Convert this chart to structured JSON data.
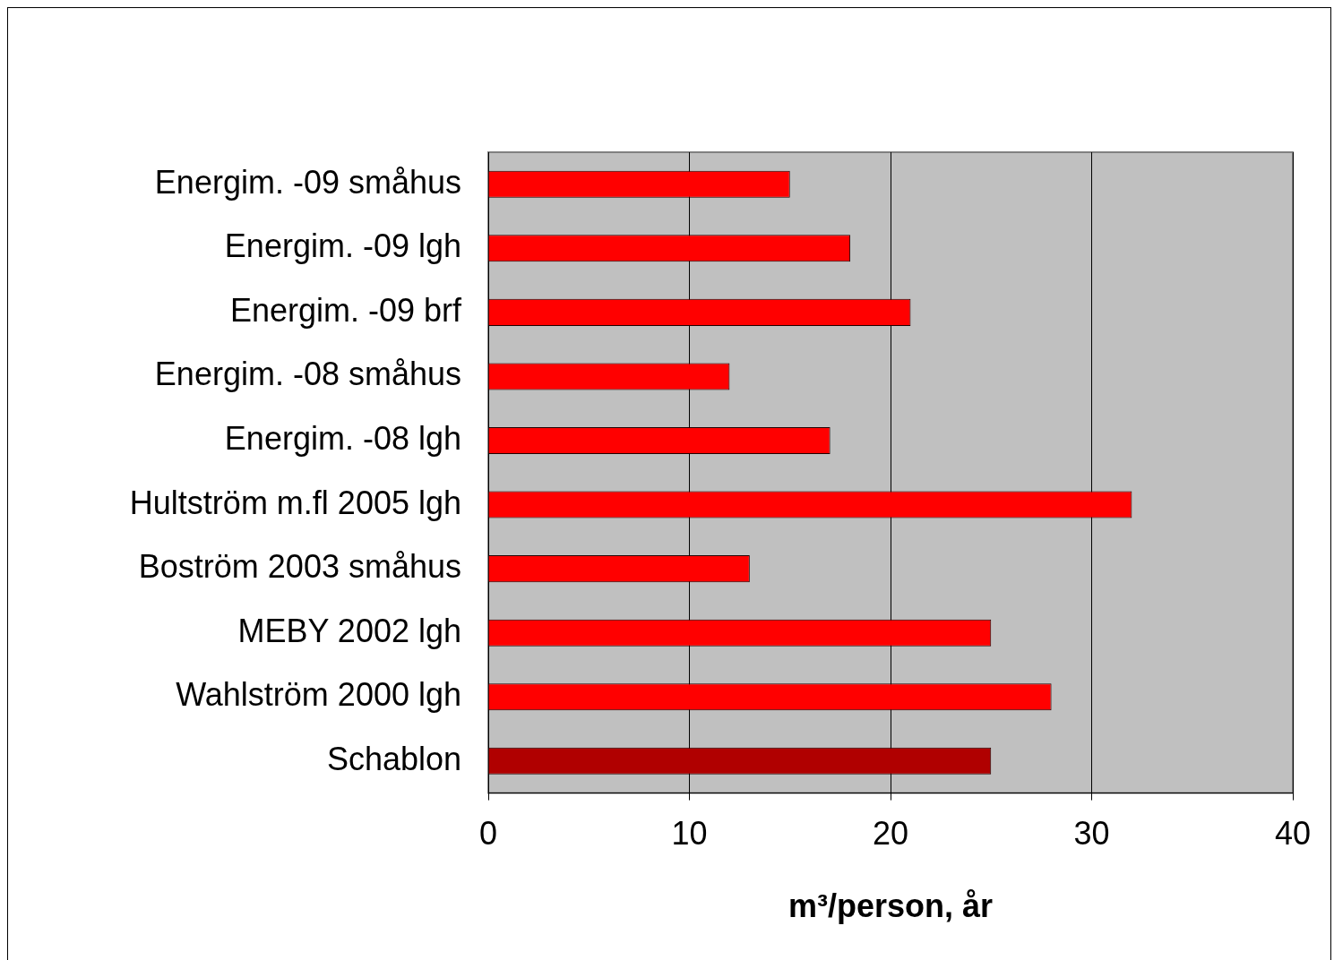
{
  "chart_data": {
    "type": "bar",
    "orientation": "horizontal",
    "categories": [
      "Energim. -09 småhus",
      "Energim. -09 lgh",
      "Energim. -09 brf",
      "Energim. -08 småhus",
      "Energim. -08 lgh",
      "Hultström m.fl 2005 lgh",
      "Boström 2003 småhus",
      "MEBY 2002 lgh",
      "Wahlström 2000 lgh",
      "Schablon"
    ],
    "values": [
      15,
      18,
      21,
      12,
      17,
      32,
      13,
      25,
      28,
      25
    ],
    "colors": [
      "#ff0000",
      "#ff0000",
      "#ff0000",
      "#ff0000",
      "#ff0000",
      "#ff0000",
      "#ff0000",
      "#ff0000",
      "#ff0000",
      "#b00000"
    ],
    "xlabel": "m³/person, år",
    "xlim": [
      0,
      40
    ],
    "xticks": [
      0,
      10,
      20,
      30,
      40
    ],
    "grid": "x",
    "legend": false
  }
}
